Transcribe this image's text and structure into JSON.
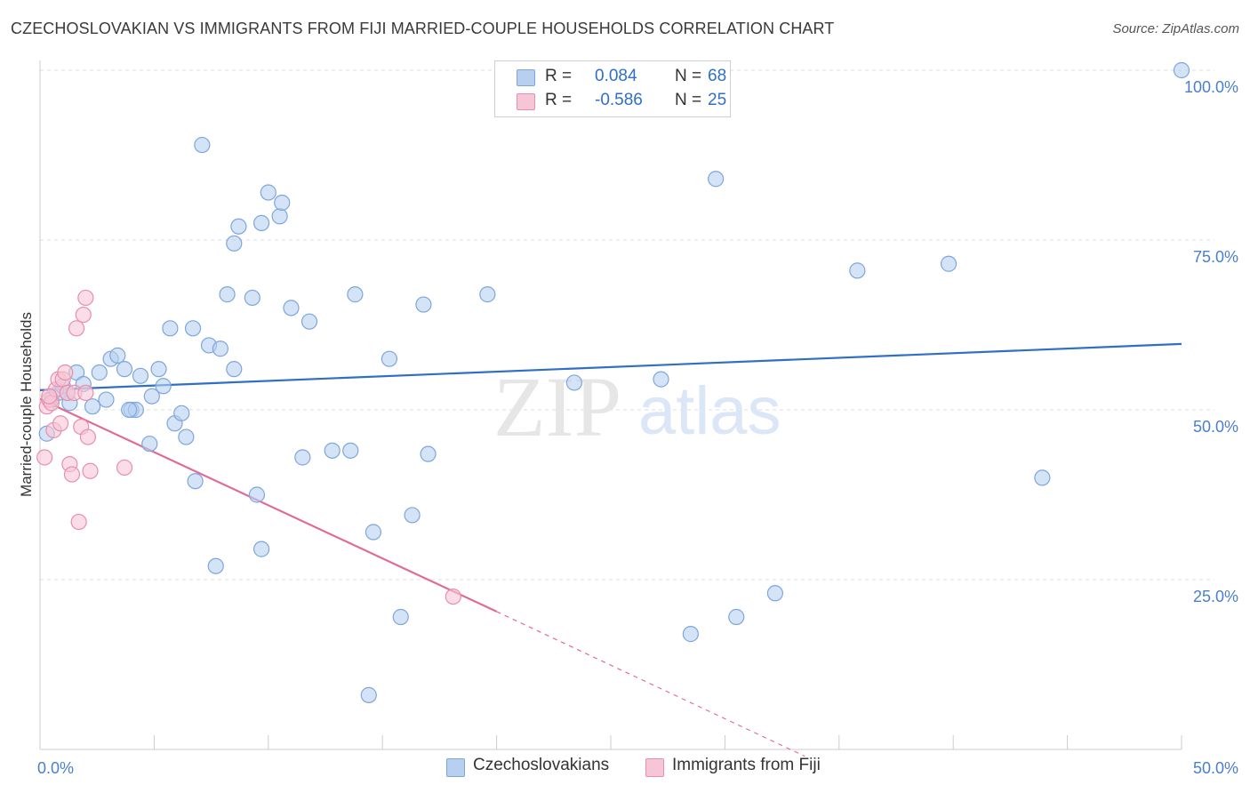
{
  "title": "CZECHOSLOVAKIAN VS IMMIGRANTS FROM FIJI MARRIED-COUPLE HOUSEHOLDS CORRELATION CHART",
  "source": "Source: ZipAtlas.com",
  "watermark": {
    "zip": "ZIP",
    "atlas": "atlas"
  },
  "legend": {
    "rows": [
      {
        "r_label": "R =",
        "r_value": "0.084",
        "n_label": "N =",
        "n_value": "68"
      },
      {
        "r_label": "R =",
        "r_value": "-0.586",
        "n_label": "N =",
        "n_value": "25"
      }
    ]
  },
  "colors": {
    "blue_fill": "#b8d0f0",
    "blue_stroke": "#7ea6dc",
    "blue_line": "#2f6fc7",
    "pink_fill": "#f7c6d6",
    "pink_stroke": "#e98eae",
    "pink_line": "#e06b98",
    "axis_text": "#4a7fcf",
    "grid": "#dddddd"
  },
  "chart_data": {
    "type": "scatter",
    "title": "CZECHOSLOVAKIAN VS IMMIGRANTS FROM FIJI MARRIED-COUPLE HOUSEHOLDS CORRELATION CHART",
    "xlabel": "",
    "ylabel": "Married-couple Households",
    "xlim": [
      0,
      50
    ],
    "ylim": [
      0,
      100
    ],
    "x_tick_labels": [
      "0.0%",
      "50.0%"
    ],
    "y_tick_labels": [
      "25.0%",
      "50.0%",
      "75.0%",
      "100.0%"
    ],
    "y_ticks": [
      25,
      50,
      75,
      100
    ],
    "grid": true,
    "legend_position": "top-center",
    "series": [
      {
        "name": "Czechoslovakians",
        "R": 0.084,
        "N": 68,
        "trend": {
          "x": [
            0,
            50
          ],
          "y": [
            52.9,
            59.7
          ]
        },
        "points": [
          [
            0.3,
            46.5
          ],
          [
            0.5,
            51.5
          ],
          [
            0.8,
            52.5
          ],
          [
            1.0,
            53.5
          ],
          [
            1.3,
            51.0
          ],
          [
            1.6,
            55.5
          ],
          [
            1.9,
            53.8
          ],
          [
            2.3,
            50.5
          ],
          [
            2.6,
            55.5
          ],
          [
            2.9,
            51.5
          ],
          [
            3.1,
            57.5
          ],
          [
            3.4,
            58.0
          ],
          [
            3.7,
            56.0
          ],
          [
            4.0,
            50.0
          ],
          [
            4.2,
            50.0
          ],
          [
            4.4,
            55.0
          ],
          [
            4.8,
            45.0
          ],
          [
            4.9,
            52.0
          ],
          [
            5.2,
            56.0
          ],
          [
            5.4,
            53.5
          ],
          [
            5.7,
            62.0
          ],
          [
            5.9,
            48.0
          ],
          [
            6.2,
            49.5
          ],
          [
            6.4,
            46.0
          ],
          [
            6.7,
            62.0
          ],
          [
            6.8,
            39.5
          ],
          [
            7.1,
            89.0
          ],
          [
            7.4,
            59.5
          ],
          [
            7.7,
            27.0
          ],
          [
            7.9,
            59.0
          ],
          [
            8.2,
            67.0
          ],
          [
            8.5,
            56.0
          ],
          [
            8.5,
            74.5
          ],
          [
            8.7,
            77.0
          ],
          [
            9.3,
            66.5
          ],
          [
            9.5,
            37.5
          ],
          [
            9.7,
            29.5
          ],
          [
            9.7,
            77.5
          ],
          [
            10.0,
            82.0
          ],
          [
            10.5,
            78.5
          ],
          [
            10.6,
            80.5
          ],
          [
            11.0,
            65.0
          ],
          [
            11.5,
            43.0
          ],
          [
            11.8,
            63.0
          ],
          [
            12.8,
            44.0
          ],
          [
            13.6,
            44.0
          ],
          [
            13.8,
            67.0
          ],
          [
            14.4,
            8.0
          ],
          [
            14.6,
            32.0
          ],
          [
            15.3,
            57.5
          ],
          [
            15.8,
            19.5
          ],
          [
            16.3,
            34.5
          ],
          [
            16.8,
            65.5
          ],
          [
            17.0,
            43.5
          ],
          [
            19.6,
            67.0
          ],
          [
            23.2,
            100.0
          ],
          [
            23.4,
            54.0
          ],
          [
            27.2,
            54.5
          ],
          [
            28.5,
            17.0
          ],
          [
            29.6,
            84.0
          ],
          [
            30.5,
            19.5
          ],
          [
            32.2,
            23.0
          ],
          [
            35.8,
            70.5
          ],
          [
            39.8,
            71.5
          ],
          [
            43.9,
            40.0
          ],
          [
            50.0,
            100.0
          ],
          [
            1.2,
            52.5
          ],
          [
            3.9,
            50.0
          ]
        ]
      },
      {
        "name": "Immigrants from Fiji",
        "R": -0.586,
        "N": 25,
        "trend": {
          "x": [
            0,
            20
          ],
          "y": [
            51.6,
            20.3
          ],
          "dashed_to": {
            "x": 33.5,
            "y": -1.0
          }
        },
        "points": [
          [
            0.2,
            43.0
          ],
          [
            0.3,
            50.5
          ],
          [
            0.4,
            51.5
          ],
          [
            0.5,
            51.0
          ],
          [
            0.6,
            47.0
          ],
          [
            0.7,
            53.0
          ],
          [
            0.8,
            54.5
          ],
          [
            0.9,
            48.0
          ],
          [
            1.0,
            54.5
          ],
          [
            1.1,
            55.5
          ],
          [
            1.2,
            52.5
          ],
          [
            1.3,
            42.0
          ],
          [
            1.4,
            40.5
          ],
          [
            1.5,
            52.5
          ],
          [
            1.6,
            62.0
          ],
          [
            1.7,
            33.5
          ],
          [
            1.8,
            47.5
          ],
          [
            1.9,
            64.0
          ],
          [
            2.0,
            52.5
          ],
          [
            2.0,
            66.5
          ],
          [
            2.1,
            46.0
          ],
          [
            2.2,
            41.0
          ],
          [
            3.7,
            41.5
          ],
          [
            18.1,
            22.5
          ],
          [
            0.4,
            52.0
          ]
        ]
      }
    ]
  },
  "bottom_legend": [
    {
      "label": "Czechoslovakians"
    },
    {
      "label": "Immigrants from Fiji"
    }
  ]
}
